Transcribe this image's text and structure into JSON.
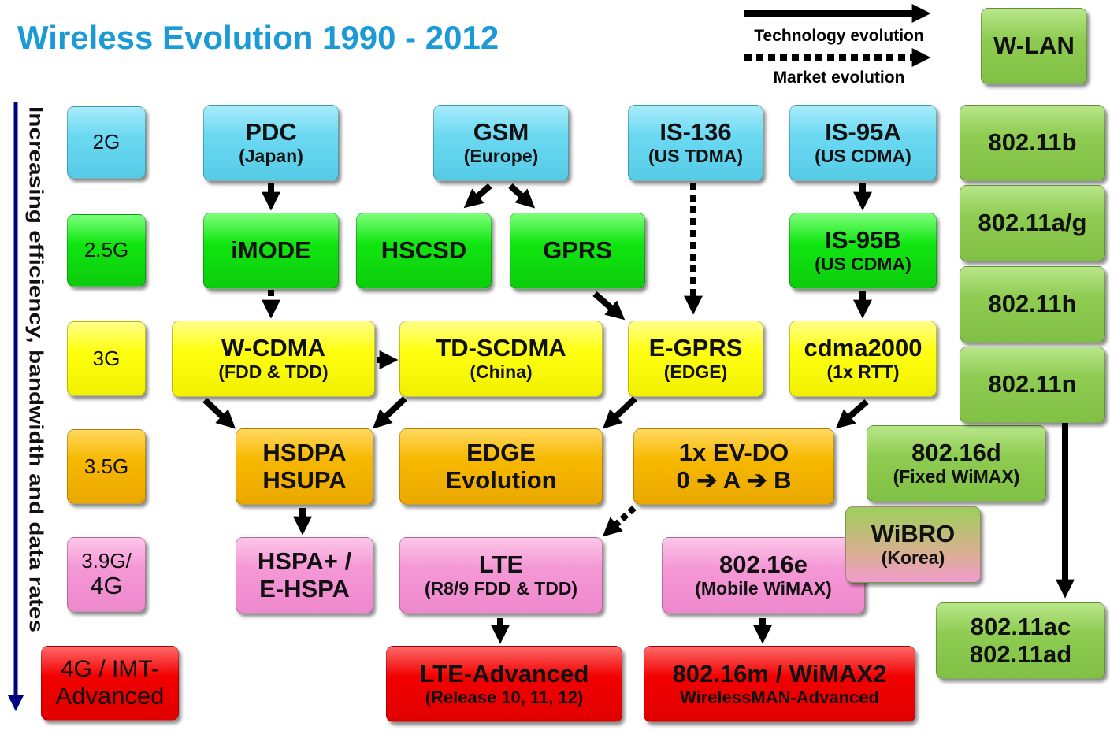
{
  "title": "Wireless Evolution 1990 - 2012",
  "legend": [
    {
      "label": "Technology evolution"
    },
    {
      "label": "Market evolution"
    }
  ],
  "axis_label": "Increasing efficiency, bandwidth and data rates",
  "generations": [
    {
      "lines": [
        "2G"
      ]
    },
    {
      "lines": [
        "2.5G"
      ]
    },
    {
      "lines": [
        "3G"
      ]
    },
    {
      "lines": [
        "3.5G"
      ]
    },
    {
      "lines": [
        "3.9G/",
        "4G"
      ]
    },
    {
      "lines": [
        "4G / IMT-",
        "Advanced"
      ]
    }
  ],
  "nodes": [
    {
      "lines": [
        "PDC",
        "(Japan)"
      ]
    },
    {
      "lines": [
        "GSM",
        "(Europe)"
      ]
    },
    {
      "lines": [
        "IS-136",
        "(US TDMA)"
      ]
    },
    {
      "lines": [
        "IS-95A",
        "(US CDMA)"
      ]
    },
    {
      "lines": [
        "iMODE"
      ]
    },
    {
      "lines": [
        "HSCSD"
      ]
    },
    {
      "lines": [
        "GPRS"
      ]
    },
    {
      "lines": [
        "IS-95B",
        "(US CDMA)"
      ]
    },
    {
      "lines": [
        "W-CDMA",
        "(FDD & TDD)"
      ]
    },
    {
      "lines": [
        "TD-SCDMA",
        "(China)"
      ]
    },
    {
      "lines": [
        "E-GPRS",
        "(EDGE)"
      ]
    },
    {
      "lines": [
        "cdma2000",
        "(1x RTT)"
      ]
    },
    {
      "lines": [
        "HSDPA",
        "HSUPA"
      ]
    },
    {
      "lines": [
        "EDGE",
        "Evolution"
      ]
    },
    {
      "lines": [
        "1x EV-DO",
        "0 ➔ A ➔ B"
      ]
    },
    {
      "lines": [
        "HSPA+ /",
        "E-HSPA"
      ]
    },
    {
      "lines": [
        "LTE",
        "(R8/9 FDD & TDD)"
      ]
    },
    {
      "lines": [
        "802.16e",
        "(Mobile WiMAX)"
      ]
    },
    {
      "lines": [
        "802.16d",
        "(Fixed WiMAX)"
      ]
    },
    {
      "lines": [
        "WiBRO",
        "(Korea)"
      ]
    },
    {
      "lines": [
        "LTE-Advanced",
        "(Release 10, 11, 12)"
      ]
    },
    {
      "lines": [
        "802.16m / WiMAX2",
        "WirelessMAN-Advanced"
      ]
    },
    {
      "lines": [
        "W-LAN"
      ]
    },
    {
      "lines": [
        "802.11b"
      ]
    },
    {
      "lines": [
        "802.11a/g"
      ]
    },
    {
      "lines": [
        "802.11h"
      ]
    },
    {
      "lines": [
        "802.11n"
      ]
    },
    {
      "lines": [
        "802.11ac",
        "802.11ad"
      ]
    }
  ]
}
